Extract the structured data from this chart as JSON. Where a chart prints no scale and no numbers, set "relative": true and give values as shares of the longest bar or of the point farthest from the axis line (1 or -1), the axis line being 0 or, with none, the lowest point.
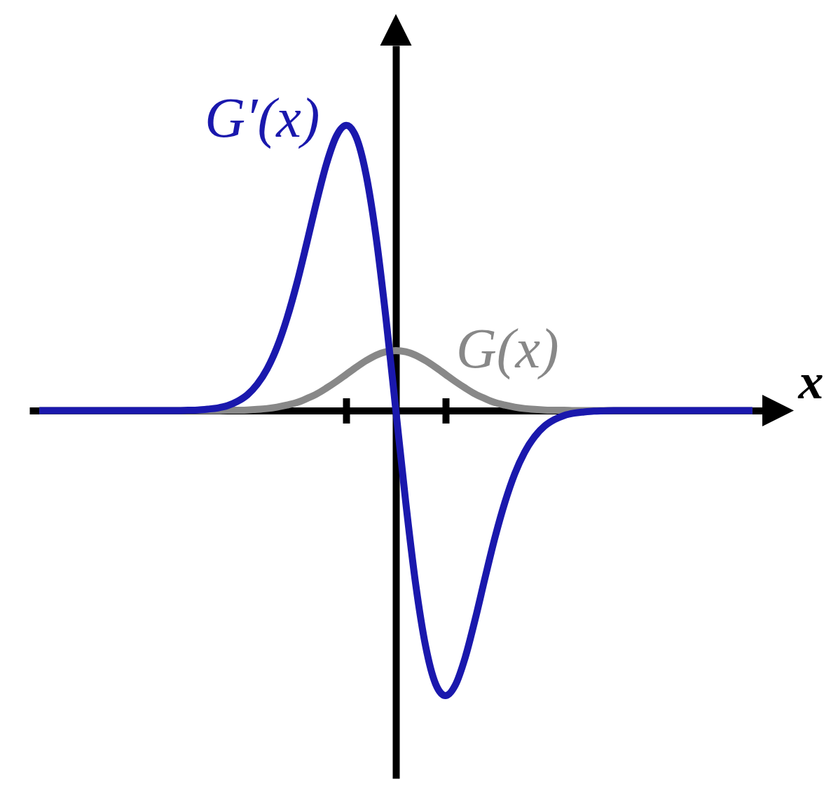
{
  "chart_data": {
    "type": "line",
    "relative": true,
    "xlabel": "x",
    "categories": [
      null,
      null,
      null,
      null,
      null,
      null,
      null,
      null,
      null,
      null,
      null,
      null,
      null,
      null,
      null,
      null,
      null,
      null,
      null,
      null,
      null,
      null,
      null,
      null,
      null,
      null,
      null,
      null,
      null,
      null,
      null,
      null,
      null,
      null,
      null,
      null,
      null,
      null,
      null,
      null,
      null,
      null,
      null,
      null,
      null,
      null,
      null,
      null,
      null,
      null,
      null,
      null,
      null,
      null,
      null,
      null,
      null,
      null,
      null,
      null,
      null,
      null,
      null,
      null,
      null,
      null,
      null,
      null,
      null,
      null,
      null,
      null,
      null
    ],
    "series": [
      {
        "name": "G(x)",
        "color": "#888888",
        "values": [
          0,
          0,
          0,
          0,
          0,
          0,
          0,
          0,
          0,
          0,
          0,
          0,
          0,
          0,
          0,
          0,
          0,
          0,
          0,
          0.001,
          0.001,
          0.002,
          0.004,
          0.007,
          0.012,
          0.019,
          0.028,
          0.042,
          0.058,
          0.079,
          0.102,
          0.127,
          0.152,
          0.175,
          0.194,
          0.206,
          0.21,
          0.206,
          0.194,
          0.175,
          0.152,
          0.127,
          0.102,
          0.079,
          0.058,
          0.042,
          0.028,
          0.019,
          0.012,
          0.007,
          0.004,
          0.002,
          0.001,
          0.001,
          0,
          0,
          0,
          0,
          0,
          0,
          0,
          0,
          0,
          0,
          0,
          0,
          0,
          0,
          0,
          0,
          0,
          0,
          0
        ]
      },
      {
        "name": "G′(x)",
        "color": "#1a18ad",
        "values": [
          0,
          0,
          0,
          0,
          0,
          0,
          0,
          0,
          0,
          0,
          0,
          0,
          0,
          0,
          0,
          0.001,
          0.002,
          0.005,
          0.009,
          0.017,
          0.032,
          0.055,
          0.092,
          0.146,
          0.222,
          0.323,
          0.446,
          0.587,
          0.733,
          0.866,
          0.963,
          1,
          0.958,
          0.826,
          0.609,
          0.323,
          0,
          -0.323,
          -0.609,
          -0.826,
          -0.958,
          -1,
          -0.963,
          -0.866,
          -0.733,
          -0.587,
          -0.446,
          -0.323,
          -0.222,
          -0.146,
          -0.092,
          -0.055,
          -0.032,
          -0.017,
          -0.009,
          -0.005,
          -0.002,
          -0.001,
          0,
          0,
          0,
          0,
          0,
          0,
          0,
          0,
          0,
          0,
          0,
          0,
          0,
          0,
          0
        ]
      }
    ]
  }
}
